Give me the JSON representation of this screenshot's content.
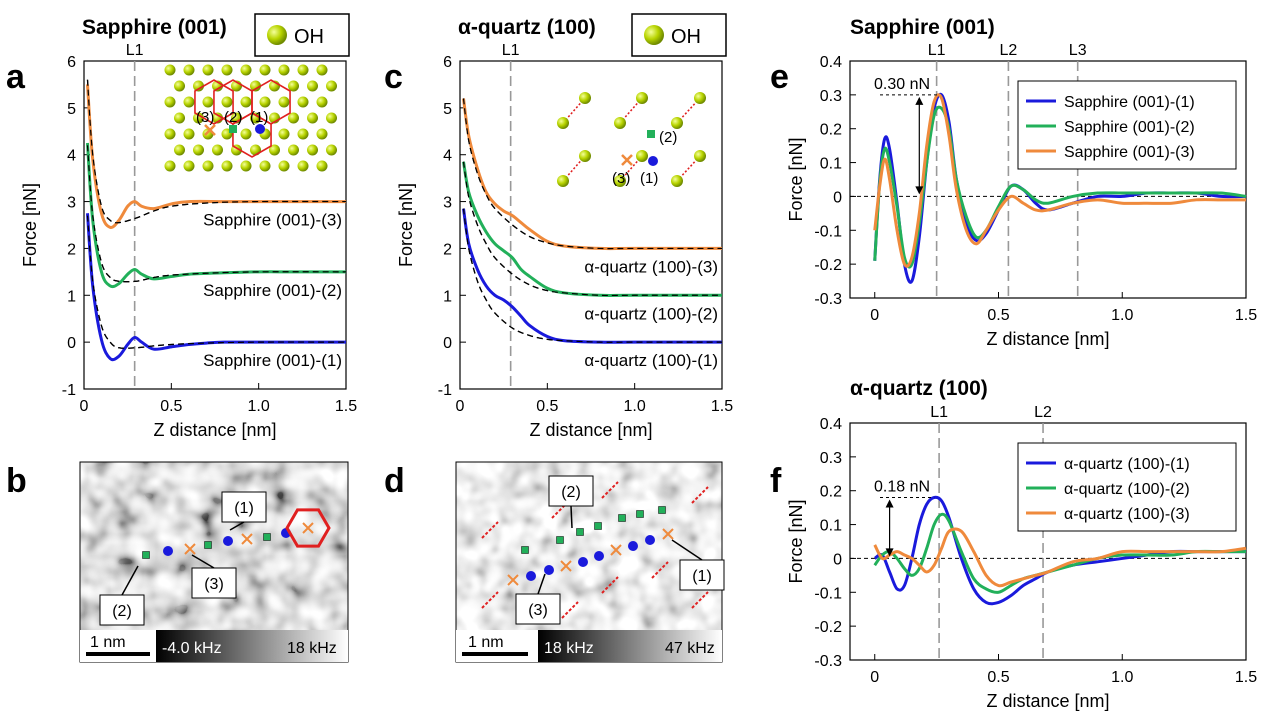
{
  "panel_letters": {
    "a": "a",
    "b": "b",
    "c": "c",
    "d": "d",
    "e": "e",
    "f": "f"
  },
  "legend_box_text": "OH",
  "colors": {
    "blue": "#1a1adc",
    "green": "#22b05a",
    "orange": "#ef8a3c",
    "ball": "#b8d400",
    "lattice": "#e02020",
    "fit": "#000000"
  },
  "chart_data": [
    {
      "id": "a",
      "type": "line",
      "title": "Sapphire (001)",
      "xlabel": "Z distance [nm]",
      "ylabel": "Force [nN]",
      "xlim": [
        0,
        1.5
      ],
      "ylim": [
        -1,
        6
      ],
      "xticks": [
        "0",
        "0.5",
        "1.0",
        "1.5"
      ],
      "yticks": [
        "-1",
        "0",
        "1",
        "2",
        "3",
        "4",
        "5",
        "6"
      ],
      "vlines": [
        {
          "label": "L1",
          "x": 0.29
        }
      ],
      "series": [
        {
          "name": "Sapphire (001)-(1)",
          "color": "blue",
          "x": [
            0.02,
            0.05,
            0.1,
            0.15,
            0.2,
            0.25,
            0.29,
            0.33,
            0.4,
            0.5,
            0.6,
            0.7,
            0.8,
            1.0,
            1.2,
            1.5
          ],
          "y": [
            2.75,
            1.2,
            0.05,
            -0.35,
            -0.3,
            -0.05,
            0.1,
            0.0,
            -0.15,
            -0.1,
            -0.05,
            -0.02,
            0.0,
            0.0,
            0.0,
            0.0
          ]
        },
        {
          "name": "Sapphire (001)-(2)",
          "color": "green",
          "x": [
            0.02,
            0.05,
            0.1,
            0.15,
            0.2,
            0.25,
            0.29,
            0.33,
            0.4,
            0.5,
            0.6,
            0.8,
            1.0,
            1.2,
            1.5
          ],
          "y": [
            4.25,
            2.6,
            1.5,
            1.2,
            1.25,
            1.45,
            1.55,
            1.45,
            1.35,
            1.4,
            1.45,
            1.48,
            1.5,
            1.5,
            1.5
          ]
        },
        {
          "name": "Sapphire (001)-(3)",
          "color": "orange",
          "x": [
            0.02,
            0.05,
            0.1,
            0.15,
            0.2,
            0.25,
            0.29,
            0.33,
            0.4,
            0.5,
            0.6,
            0.8,
            1.0,
            1.2,
            1.5
          ],
          "y": [
            5.5,
            3.9,
            2.75,
            2.45,
            2.6,
            2.9,
            3.0,
            2.9,
            2.85,
            2.95,
            3.0,
            3.0,
            3.0,
            3.0,
            3.0
          ]
        }
      ],
      "fits": [
        {
          "x": [
            0.02,
            0.05,
            0.1,
            0.15,
            0.2,
            0.3,
            0.4,
            0.5,
            0.7,
            1.0,
            1.5
          ],
          "y": [
            2.7,
            1.3,
            0.35,
            0.0,
            -0.12,
            -0.12,
            -0.08,
            -0.05,
            -0.02,
            0.0,
            0.0
          ]
        },
        {
          "x": [
            0.02,
            0.05,
            0.1,
            0.15,
            0.2,
            0.3,
            0.4,
            0.5,
            0.7,
            1.0,
            1.5
          ],
          "y": [
            4.2,
            2.7,
            1.7,
            1.38,
            1.3,
            1.3,
            1.38,
            1.43,
            1.47,
            1.5,
            1.5
          ]
        },
        {
          "x": [
            0.02,
            0.05,
            0.1,
            0.15,
            0.2,
            0.3,
            0.4,
            0.5,
            0.7,
            1.0,
            1.5
          ],
          "y": [
            5.6,
            4.0,
            2.9,
            2.6,
            2.55,
            2.65,
            2.8,
            2.9,
            2.97,
            3.0,
            3.0
          ]
        }
      ],
      "curve_labels": [
        "Sapphire (001)-(3)",
        "Sapphire (001)-(2)",
        "Sapphire (001)-(1)"
      ],
      "inset_labels": [
        "(3)",
        "(2)",
        "(1)"
      ]
    },
    {
      "id": "c",
      "type": "line",
      "title": "α-quartz (100)",
      "xlabel": "Z distance [nm]",
      "ylabel": "Force [nN]",
      "xlim": [
        0,
        1.5
      ],
      "ylim": [
        -1,
        6
      ],
      "xticks": [
        "0",
        "0.5",
        "1.0",
        "1.5"
      ],
      "yticks": [
        "-1",
        "0",
        "1",
        "2",
        "3",
        "4",
        "5",
        "6"
      ],
      "vlines": [
        {
          "label": "L1",
          "x": 0.29
        }
      ],
      "series": [
        {
          "name": "α-quartz (100)-(1)",
          "color": "blue",
          "x": [
            0.02,
            0.05,
            0.1,
            0.15,
            0.2,
            0.25,
            0.3,
            0.35,
            0.4,
            0.5,
            0.6,
            0.8,
            1.0,
            1.5
          ],
          "y": [
            2.85,
            2.1,
            1.55,
            1.2,
            1.0,
            0.9,
            0.75,
            0.55,
            0.35,
            0.12,
            0.03,
            0.0,
            0.0,
            0.0
          ]
        },
        {
          "name": "α-quartz (100)-(2)",
          "color": "green",
          "x": [
            0.02,
            0.05,
            0.1,
            0.15,
            0.2,
            0.25,
            0.3,
            0.35,
            0.4,
            0.5,
            0.6,
            0.8,
            1.0,
            1.5
          ],
          "y": [
            3.85,
            3.2,
            2.7,
            2.35,
            2.1,
            1.95,
            1.8,
            1.55,
            1.4,
            1.15,
            1.05,
            1.0,
            1.0,
            1.0
          ]
        },
        {
          "name": "α-quartz (100)-(3)",
          "color": "orange",
          "x": [
            0.02,
            0.05,
            0.1,
            0.15,
            0.2,
            0.25,
            0.3,
            0.35,
            0.4,
            0.5,
            0.6,
            0.8,
            1.0,
            1.5
          ],
          "y": [
            5.2,
            4.4,
            3.7,
            3.2,
            2.95,
            2.8,
            2.7,
            2.55,
            2.4,
            2.15,
            2.05,
            2.0,
            2.0,
            2.0
          ]
        }
      ],
      "fits": [
        {
          "x": [
            0.02,
            0.05,
            0.1,
            0.15,
            0.2,
            0.3,
            0.4,
            0.5,
            0.6,
            0.8,
            1.0,
            1.5
          ],
          "y": [
            2.85,
            2.0,
            1.3,
            0.9,
            0.62,
            0.3,
            0.14,
            0.06,
            0.03,
            0.0,
            0.0,
            0.0
          ]
        },
        {
          "x": [
            0.02,
            0.05,
            0.1,
            0.15,
            0.2,
            0.3,
            0.4,
            0.5,
            0.6,
            0.8,
            1.0,
            1.5
          ],
          "y": [
            3.85,
            3.1,
            2.5,
            2.1,
            1.8,
            1.45,
            1.22,
            1.1,
            1.05,
            1.0,
            1.0,
            1.0
          ]
        },
        {
          "x": [
            0.02,
            0.05,
            0.1,
            0.15,
            0.2,
            0.3,
            0.4,
            0.5,
            0.6,
            0.8,
            1.0,
            1.5
          ],
          "y": [
            5.2,
            4.3,
            3.6,
            3.15,
            2.85,
            2.5,
            2.25,
            2.12,
            2.05,
            2.0,
            2.0,
            2.0
          ]
        }
      ],
      "curve_labels": [
        "α-quartz (100)-(3)",
        "α-quartz (100)-(2)",
        "α-quartz (100)-(1)"
      ],
      "inset_labels": [
        "(2)",
        "(3)",
        "(1)"
      ]
    },
    {
      "id": "e",
      "type": "line",
      "title": "Sapphire (001)",
      "xlabel": "Z distance [nm]",
      "ylabel": "Force [nN]",
      "xlim": [
        -0.1,
        1.5
      ],
      "ylim": [
        -0.3,
        0.4
      ],
      "xticks": [
        "0",
        "0.5",
        "1.0",
        "1.5"
      ],
      "yticks": [
        "-0.3",
        "-0.2",
        "-0.1",
        "0",
        "0.1",
        "0.2",
        "0.3",
        "0.4"
      ],
      "vlines": [
        {
          "label": "L1",
          "x": 0.25
        },
        {
          "label": "L2",
          "x": 0.54
        },
        {
          "label": "L3",
          "x": 0.82
        }
      ],
      "annotation": "0.30 nN",
      "legend": "top-right",
      "series": [
        {
          "name": "Sapphire (001)-(1)",
          "color": "blue",
          "x": [
            0.0,
            0.02,
            0.04,
            0.06,
            0.09,
            0.12,
            0.15,
            0.18,
            0.21,
            0.24,
            0.27,
            0.3,
            0.33,
            0.37,
            0.41,
            0.45,
            0.5,
            0.55,
            0.6,
            0.65,
            0.7,
            0.8,
            0.9,
            1.0,
            1.1,
            1.2,
            1.3,
            1.4,
            1.5
          ],
          "y": [
            -0.19,
            0.05,
            0.17,
            0.14,
            -0.02,
            -0.2,
            -0.25,
            -0.12,
            0.1,
            0.26,
            0.3,
            0.22,
            0.05,
            -0.08,
            -0.13,
            -0.11,
            -0.04,
            0.03,
            0.02,
            -0.02,
            -0.04,
            -0.02,
            0.0,
            0.0,
            0.01,
            0.01,
            0.01,
            0.0,
            0.0
          ]
        },
        {
          "name": "Sapphire (001)-(2)",
          "color": "green",
          "x": [
            0.0,
            0.02,
            0.04,
            0.06,
            0.09,
            0.12,
            0.15,
            0.18,
            0.21,
            0.24,
            0.27,
            0.3,
            0.33,
            0.37,
            0.41,
            0.45,
            0.5,
            0.55,
            0.6,
            0.65,
            0.7,
            0.8,
            0.9,
            1.0,
            1.1,
            1.2,
            1.3,
            1.4,
            1.5
          ],
          "y": [
            -0.19,
            0.04,
            0.14,
            0.1,
            -0.03,
            -0.18,
            -0.2,
            -0.08,
            0.1,
            0.24,
            0.26,
            0.2,
            0.05,
            -0.06,
            -0.12,
            -0.1,
            -0.03,
            0.03,
            0.02,
            -0.01,
            -0.02,
            0.0,
            0.01,
            0.01,
            0.01,
            0.01,
            0.01,
            0.01,
            0.0
          ]
        },
        {
          "name": "Sapphire (001)-(3)",
          "color": "orange",
          "x": [
            0.0,
            0.02,
            0.04,
            0.06,
            0.09,
            0.12,
            0.15,
            0.18,
            0.21,
            0.24,
            0.27,
            0.3,
            0.33,
            0.37,
            0.41,
            0.45,
            0.5,
            0.55,
            0.6,
            0.65,
            0.7,
            0.8,
            0.9,
            1.0,
            1.1,
            1.2,
            1.3,
            1.4,
            1.5
          ],
          "y": [
            -0.1,
            0.03,
            0.11,
            0.05,
            -0.1,
            -0.2,
            -0.18,
            -0.05,
            0.15,
            0.28,
            0.29,
            0.18,
            0.02,
            -0.1,
            -0.14,
            -0.1,
            -0.04,
            0.0,
            -0.02,
            -0.04,
            -0.04,
            -0.02,
            -0.01,
            -0.02,
            -0.02,
            -0.02,
            -0.01,
            -0.01,
            -0.01
          ]
        }
      ]
    },
    {
      "id": "f",
      "type": "line",
      "title": "α-quartz (100)",
      "xlabel": "Z distance [nm]",
      "ylabel": "Force [nN]",
      "xlim": [
        -0.1,
        1.5
      ],
      "ylim": [
        -0.3,
        0.4
      ],
      "xticks": [
        "0",
        "0.5",
        "1.0",
        "1.5"
      ],
      "yticks": [
        "-0.3",
        "-0.2",
        "-0.1",
        "0",
        "0.1",
        "0.2",
        "0.3",
        "0.4"
      ],
      "vlines": [
        {
          "label": "L1",
          "x": 0.26
        },
        {
          "label": "L2",
          "x": 0.68
        }
      ],
      "annotation": "0.18 nN",
      "legend": "top-right",
      "series": [
        {
          "name": "α-quartz (100)-(1)",
          "color": "blue",
          "x": [
            0.0,
            0.03,
            0.06,
            0.09,
            0.12,
            0.15,
            0.18,
            0.21,
            0.24,
            0.27,
            0.3,
            0.35,
            0.4,
            0.45,
            0.5,
            0.55,
            0.6,
            0.65,
            0.7,
            0.8,
            0.9,
            1.0,
            1.1,
            1.2,
            1.3,
            1.4,
            1.5
          ],
          "y": [
            0.0,
            0.01,
            -0.04,
            -0.09,
            -0.08,
            0.0,
            0.1,
            0.16,
            0.18,
            0.17,
            0.12,
            0.0,
            -0.09,
            -0.13,
            -0.13,
            -0.11,
            -0.08,
            -0.06,
            -0.04,
            -0.02,
            -0.01,
            0.0,
            0.01,
            0.02,
            0.02,
            0.02,
            0.02
          ]
        },
        {
          "name": "α-quartz (100)-(2)",
          "color": "green",
          "x": [
            0.0,
            0.03,
            0.06,
            0.09,
            0.12,
            0.15,
            0.18,
            0.21,
            0.24,
            0.27,
            0.3,
            0.35,
            0.4,
            0.45,
            0.5,
            0.55,
            0.6,
            0.65,
            0.7,
            0.8,
            0.9,
            1.0,
            1.1,
            1.2,
            1.3,
            1.4,
            1.5
          ],
          "y": [
            -0.02,
            0.01,
            0.02,
            0.0,
            -0.03,
            -0.05,
            -0.03,
            0.03,
            0.1,
            0.13,
            0.11,
            0.02,
            -0.06,
            -0.09,
            -0.1,
            -0.08,
            -0.06,
            -0.05,
            -0.04,
            -0.02,
            0.0,
            0.01,
            0.01,
            0.01,
            0.02,
            0.02,
            0.02
          ]
        },
        {
          "name": "α-quartz (100)-(3)",
          "color": "orange",
          "x": [
            0.0,
            0.03,
            0.06,
            0.09,
            0.12,
            0.15,
            0.18,
            0.21,
            0.24,
            0.27,
            0.3,
            0.35,
            0.4,
            0.45,
            0.5,
            0.55,
            0.6,
            0.65,
            0.7,
            0.8,
            0.9,
            1.0,
            1.1,
            1.2,
            1.3,
            1.4,
            1.5
          ],
          "y": [
            0.04,
            0.0,
            0.01,
            0.02,
            0.01,
            0.0,
            -0.02,
            -0.04,
            -0.02,
            0.03,
            0.08,
            0.08,
            0.02,
            -0.05,
            -0.08,
            -0.07,
            -0.06,
            -0.05,
            -0.04,
            -0.01,
            0.0,
            0.02,
            0.02,
            0.02,
            0.02,
            0.02,
            0.03
          ]
        }
      ]
    }
  ],
  "afm_b": {
    "scale_bar": "1 nm",
    "cmin": "-4.0 kHz",
    "cmax": "18 kHz",
    "labels": [
      "(1)",
      "(2)",
      "(3)"
    ]
  },
  "afm_d": {
    "scale_bar": "1 nm",
    "cmin": "18 kHz",
    "cmax": "47 kHz",
    "labels": [
      "(1)",
      "(2)",
      "(3)"
    ]
  }
}
